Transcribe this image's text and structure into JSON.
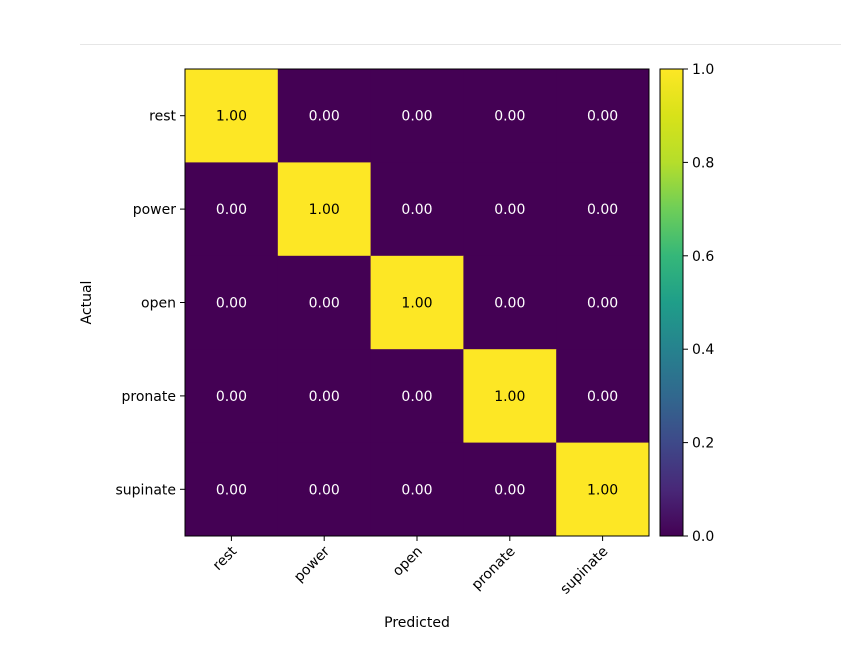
{
  "chart_data": {
    "type": "heatmap",
    "title": "",
    "xlabel": "Predicted",
    "ylabel": "Actual",
    "x_categories": [
      "rest",
      "power",
      "open",
      "pronate",
      "supinate"
    ],
    "y_categories": [
      "rest",
      "power",
      "open",
      "pronate",
      "supinate"
    ],
    "values": [
      [
        1.0,
        0.0,
        0.0,
        0.0,
        0.0
      ],
      [
        0.0,
        1.0,
        0.0,
        0.0,
        0.0
      ],
      [
        0.0,
        0.0,
        1.0,
        0.0,
        0.0
      ],
      [
        0.0,
        0.0,
        0.0,
        1.0,
        0.0
      ],
      [
        0.0,
        0.0,
        0.0,
        0.0,
        1.0
      ]
    ],
    "value_format": "2 decimals",
    "colormap": "viridis",
    "vmin": 0.0,
    "vmax": 1.0,
    "colorbar_ticks": [
      0.0,
      0.2,
      0.4,
      0.6,
      0.8,
      1.0
    ],
    "colorbar_tick_labels": [
      "0.0",
      "0.2",
      "0.4",
      "0.6",
      "0.8",
      "1.0"
    ],
    "x_tick_rotation_deg": 45,
    "colors": {
      "low": "#440154",
      "high": "#fde725",
      "label_on_low": "#ffffff",
      "label_on_high": "#000000"
    }
  }
}
